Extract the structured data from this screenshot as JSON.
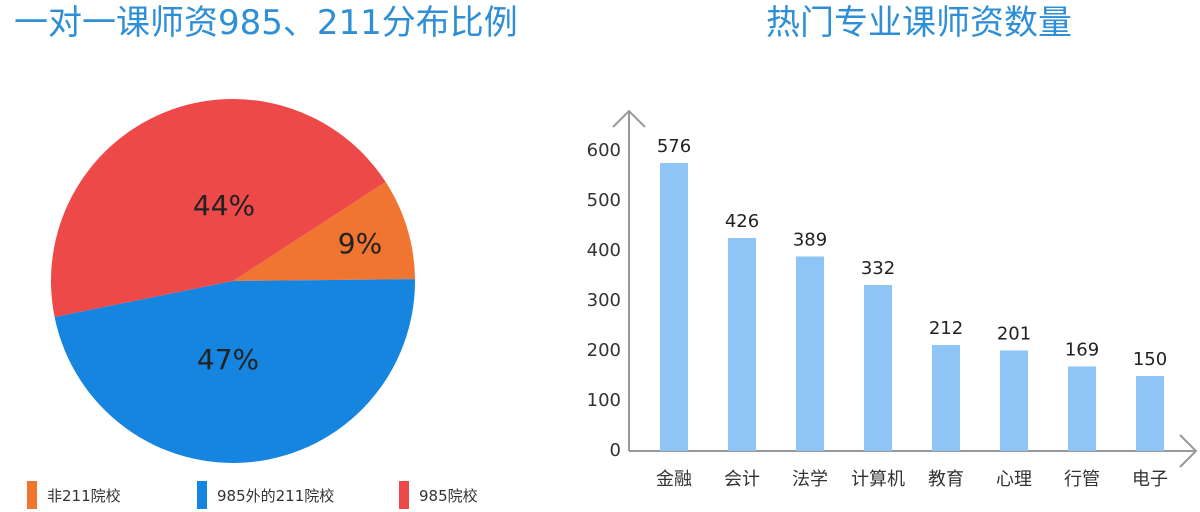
{
  "chart_data": [
    {
      "type": "pie",
      "title": "一对一课师资985、211分布比例",
      "slices": [
        {
          "label": "非211院校",
          "value": 9,
          "display": "9%",
          "color": "#ef7530"
        },
        {
          "label": "985外的211院校",
          "value": 47,
          "display": "47%",
          "color": "#1585e0"
        },
        {
          "label": "985院校",
          "value": 44,
          "display": "44%",
          "color": "#ee4949"
        }
      ],
      "legend_position": "bottom"
    },
    {
      "type": "bar",
      "title": "热门专业课师资数量",
      "categories": [
        "金融",
        "会计",
        "法学",
        "计算机",
        "教育",
        "心理",
        "行管",
        "电子"
      ],
      "values": [
        576,
        426,
        389,
        332,
        212,
        201,
        169,
        150
      ],
      "ylim": [
        0,
        600
      ],
      "yticks": [
        0,
        100,
        200,
        300,
        400,
        500,
        600
      ],
      "bar_color": "#8ec5f6",
      "grid": false
    }
  ]
}
